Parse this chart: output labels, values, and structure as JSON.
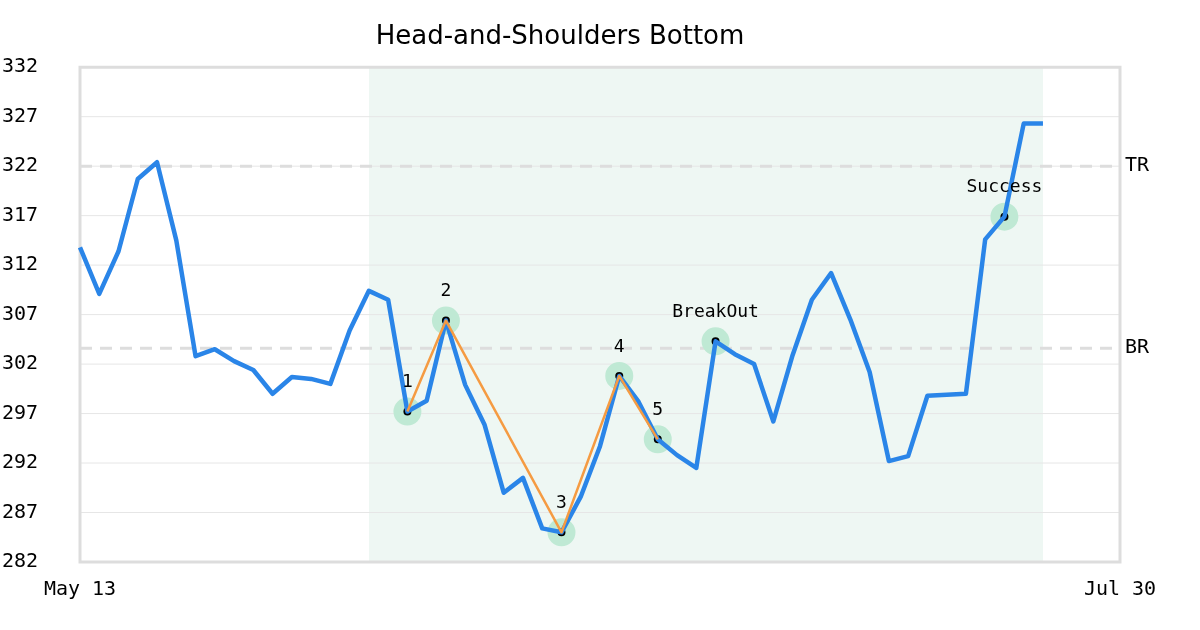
{
  "chart_data": {
    "type": "line",
    "title": "Head-and-Shoulders Bottom",
    "categories": [
      "May 13",
      null,
      null,
      null,
      null,
      null,
      null,
      null,
      null,
      null,
      null,
      null,
      null,
      null,
      null,
      null,
      null,
      null,
      null,
      null,
      null,
      null,
      null,
      null,
      null,
      null,
      null,
      null,
      null,
      null,
      null,
      null,
      null,
      null,
      null,
      null,
      null,
      null,
      null,
      null,
      null,
      null,
      null,
      null,
      null,
      null,
      null,
      null,
      null,
      null,
      null,
      null,
      null,
      null,
      "Jul 30"
    ],
    "ylim": [
      282,
      332
    ],
    "yticks": [
      282,
      287,
      292,
      297,
      302,
      307,
      312,
      317,
      322,
      327,
      332
    ],
    "grid": "y",
    "legend": false,
    "marker": "none",
    "line_style": "solid",
    "series": [
      {
        "color": "#2a85e8",
        "values": [
          313.8,
          309.1,
          313.4,
          320.7,
          322.4,
          314.5,
          302.8,
          303.5,
          302.3,
          301.4,
          299.0,
          300.7,
          300.5,
          300.0,
          305.4,
          309.4,
          308.5,
          297.2,
          298.3,
          306.4,
          299.9,
          295.9,
          289.0,
          290.5,
          285.4,
          285.0,
          288.6,
          293.7,
          300.8,
          298.2,
          294.4,
          292.8,
          291.5,
          304.3,
          303.0,
          302.0,
          296.2,
          302.9,
          308.5,
          311.2,
          306.5,
          301.2,
          292.2,
          292.7,
          298.8,
          298.9,
          299.0,
          314.6,
          316.9,
          326.3,
          326.3,
          null,
          null,
          null,
          null
        ]
      },
      {
        "color": "#f59b42",
        "values": [
          null,
          null,
          null,
          null,
          null,
          null,
          null,
          null,
          null,
          null,
          null,
          null,
          null,
          null,
          null,
          null,
          null,
          297.2,
          null,
          306.4,
          null,
          null,
          null,
          null,
          null,
          285.0,
          null,
          null,
          300.8,
          null,
          294.4,
          null,
          null,
          null,
          null,
          null,
          null,
          null,
          null,
          null,
          null,
          null,
          null,
          null,
          null,
          null,
          null,
          null,
          null,
          null,
          null,
          null,
          null,
          null,
          null
        ]
      },
      {
        "type": "scatter",
        "color": "#000000",
        "marker": "circle",
        "values": [
          null,
          null,
          null,
          null,
          null,
          null,
          null,
          null,
          null,
          null,
          null,
          null,
          null,
          null,
          null,
          null,
          null,
          297.2,
          null,
          306.4,
          null,
          null,
          null,
          null,
          null,
          285.0,
          null,
          null,
          300.8,
          null,
          294.4,
          null,
          null,
          304.3,
          null,
          null,
          null,
          null,
          null,
          null,
          null,
          null,
          null,
          null,
          null,
          null,
          null,
          null,
          316.9,
          null,
          null,
          null,
          null,
          null,
          null
        ]
      }
    ],
    "ref_lines": [
      {
        "axis": "y",
        "value": 322,
        "label": "TR",
        "color": "#dddddd",
        "line_style": "dashed"
      },
      {
        "axis": "y",
        "value": 303.6,
        "label": "BR",
        "color": "#dddddd",
        "line_style": "dashed"
      }
    ],
    "annotations": [
      {
        "text": "1",
        "y": 297.2
      },
      {
        "text": "2",
        "y": 306.4
      },
      {
        "text": "3",
        "y": 285.0
      },
      {
        "text": "4",
        "y": 300.8
      },
      {
        "text": "5",
        "y": 294.4
      },
      {
        "text": "BreakOut",
        "y": 304.3
      },
      {
        "text": "Success",
        "y": 316.9
      }
    ]
  }
}
